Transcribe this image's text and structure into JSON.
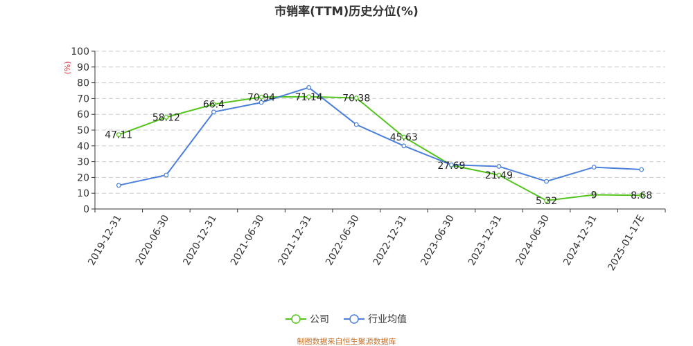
{
  "chart_data": {
    "type": "line",
    "title": "市销率(TTM)历史分位(%)",
    "ylabel": "(%)",
    "ylim": [
      0,
      100
    ],
    "yticks": [
      0,
      10,
      20,
      30,
      40,
      50,
      60,
      70,
      80,
      90,
      100
    ],
    "categories": [
      "2019-12-31",
      "2020-06-30",
      "2020-12-31",
      "2021-06-30",
      "2021-12-31",
      "2022-06-30",
      "2022-12-31",
      "2023-06-30",
      "2023-12-31",
      "2024-06-30",
      "2024-12-31",
      "2025-01-17E"
    ],
    "series": [
      {
        "name": "公司",
        "color": "#52c41a",
        "values": [
          47.11,
          58.12,
          66.4,
          70.94,
          71.14,
          70.38,
          45.63,
          27.69,
          21.49,
          5.32,
          9,
          8.68
        ],
        "show_labels": true
      },
      {
        "name": "行业均值",
        "color": "#4a7fdc",
        "values": [
          15,
          21.5,
          61.5,
          67.5,
          77,
          53.5,
          40,
          28,
          27,
          17.5,
          26.5,
          25
        ],
        "show_labels": false
      }
    ],
    "grid": true,
    "legend_position": "bottom-center"
  },
  "footer": "制图数据来自恒生聚源数据库"
}
